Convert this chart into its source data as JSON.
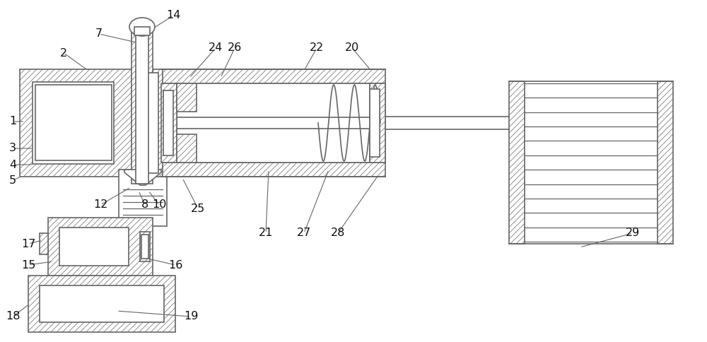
{
  "bg": "#ffffff",
  "lc": "#666666",
  "lw": 1.2,
  "fs": 11.5,
  "hatch_lw": 0.5
}
